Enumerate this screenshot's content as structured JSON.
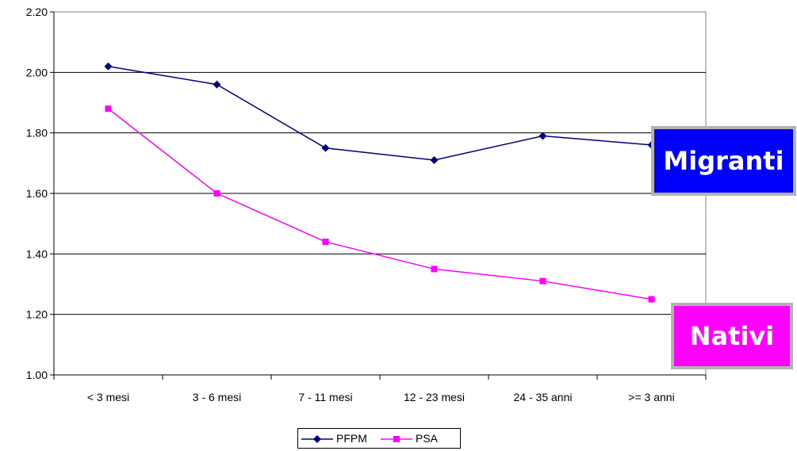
{
  "chart_data": {
    "type": "line",
    "categories": [
      "< 3 mesi",
      "3 - 6 mesi",
      "7 - 11 mesi",
      "12 - 23 mesi",
      "24 - 35 anni",
      ">= 3 anni"
    ],
    "series": [
      {
        "name": "PFPM",
        "color": "#000080",
        "marker": "diamond",
        "values": [
          2.02,
          1.96,
          1.75,
          1.71,
          1.79,
          1.76
        ]
      },
      {
        "name": "PSA",
        "color": "#ff00ff",
        "marker": "square",
        "values": [
          1.88,
          1.6,
          1.44,
          1.35,
          1.31,
          1.25
        ]
      }
    ],
    "ylim": [
      1.0,
      2.2
    ],
    "yticks": [
      "1.00",
      "1.20",
      "1.40",
      "1.60",
      "1.80",
      "2.00",
      "2.20"
    ],
    "grid": true,
    "legend": "bottom",
    "annotations": [
      {
        "text": "Migranti",
        "color": "#0000ff"
      },
      {
        "text": "Nativi",
        "color": "#ff00ff"
      }
    ]
  }
}
